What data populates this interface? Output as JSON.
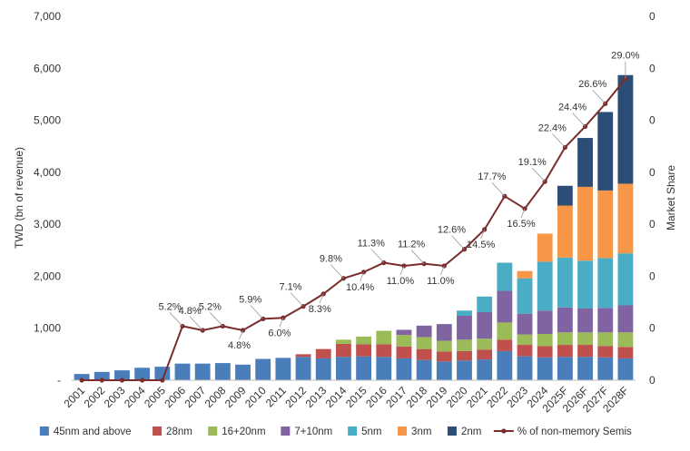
{
  "chart_data": {
    "type": "bar",
    "stacked": true,
    "title": "",
    "xlabel": "",
    "ylabel": "TWD (bn of revenue)",
    "y2label": "Market Share",
    "ylim": [
      0,
      7000
    ],
    "yticks": [
      "-",
      "1,000",
      "2,000",
      "3,000",
      "4,000",
      "5,000",
      "6,000",
      "7,000"
    ],
    "y2ticks": [
      "0",
      "0",
      "0",
      "0",
      "0",
      "0",
      "0",
      "0"
    ],
    "grid": false,
    "legend_position": "bottom",
    "categories": [
      "2001",
      "2002",
      "2003",
      "2004",
      "2005",
      "2006",
      "2007",
      "2008",
      "2009",
      "2010",
      "2011",
      "2012",
      "2013",
      "2014",
      "2015",
      "2016",
      "2017",
      "2018",
      "2019",
      "2020",
      "2021",
      "2022",
      "2023",
      "2024",
      "2025F",
      "2026F",
      "2027F",
      "2028F"
    ],
    "series": [
      {
        "name": "45nm and above",
        "color": "#4a7ebb",
        "values": [
          120,
          160,
          190,
          240,
          260,
          320,
          320,
          330,
          300,
          410,
          430,
          450,
          420,
          450,
          460,
          450,
          420,
          390,
          360,
          380,
          400,
          560,
          460,
          440,
          450,
          450,
          440,
          420
        ]
      },
      {
        "name": "28nm",
        "color": "#c0504d",
        "values": [
          0,
          0,
          0,
          0,
          0,
          0,
          0,
          0,
          0,
          0,
          0,
          50,
          180,
          250,
          230,
          240,
          230,
          210,
          190,
          180,
          190,
          220,
          220,
          220,
          230,
          230,
          220,
          220
        ]
      },
      {
        "name": "16+20nm",
        "color": "#9bbb59",
        "values": [
          0,
          0,
          0,
          0,
          0,
          0,
          0,
          0,
          0,
          0,
          0,
          0,
          0,
          80,
          150,
          260,
          220,
          230,
          210,
          220,
          210,
          330,
          200,
          230,
          240,
          240,
          260,
          280
        ]
      },
      {
        "name": "7+10nm",
        "color": "#8064a2",
        "values": [
          0,
          0,
          0,
          0,
          0,
          0,
          0,
          0,
          0,
          0,
          0,
          0,
          0,
          0,
          0,
          0,
          100,
          220,
          320,
          460,
          510,
          610,
          400,
          450,
          480,
          460,
          470,
          520
        ]
      },
      {
        "name": "5nm",
        "color": "#4bacc6",
        "values": [
          0,
          0,
          0,
          0,
          0,
          0,
          0,
          0,
          0,
          0,
          0,
          0,
          0,
          0,
          0,
          0,
          0,
          0,
          0,
          100,
          300,
          540,
          680,
          940,
          960,
          920,
          960,
          1000
        ]
      },
      {
        "name": "3nm",
        "color": "#f79646",
        "values": [
          0,
          0,
          0,
          0,
          0,
          0,
          0,
          0,
          0,
          0,
          0,
          0,
          0,
          0,
          0,
          0,
          0,
          0,
          0,
          0,
          0,
          0,
          140,
          540,
          1000,
          1420,
          1300,
          1340
        ]
      },
      {
        "name": "2nm",
        "color": "#2c4d75",
        "values": [
          0,
          0,
          0,
          0,
          0,
          0,
          0,
          0,
          0,
          0,
          0,
          0,
          0,
          0,
          0,
          0,
          0,
          0,
          0,
          0,
          0,
          0,
          0,
          0,
          380,
          940,
          1510,
          2090
        ]
      }
    ],
    "line_series": {
      "name": "% of non-memory Semis",
      "color": "#7b2c2c",
      "axis": "secondary",
      "values": [
        0,
        0,
        0,
        0,
        0,
        5.2,
        4.8,
        5.2,
        4.8,
        5.9,
        6.0,
        7.1,
        8.3,
        9.8,
        10.4,
        11.3,
        11.0,
        11.2,
        11.0,
        12.6,
        14.5,
        17.7,
        16.5,
        19.1,
        22.4,
        24.4,
        26.6,
        29.0
      ]
    },
    "data_labels": {
      "2006": "5.2%",
      "2007": "4.8%",
      "2008": "5.2%",
      "2009": "4.8%",
      "2010": "5.9%",
      "2011": "6.0%",
      "2012": "7.1%",
      "2013": "8.3%",
      "2014": "9.8%",
      "2015": "10.4%",
      "2016": "11.3%",
      "2017": "11.0%",
      "2018": "11.2%",
      "2019": "11.0%",
      "2020": "12.6%",
      "2021": "14.5%",
      "2022": "17.7%",
      "2023": "16.5%",
      "2024": "19.1%",
      "2025F": "22.4%",
      "2026F": "24.4%",
      "2027F": "26.6%",
      "2028F": "29.0%"
    }
  }
}
